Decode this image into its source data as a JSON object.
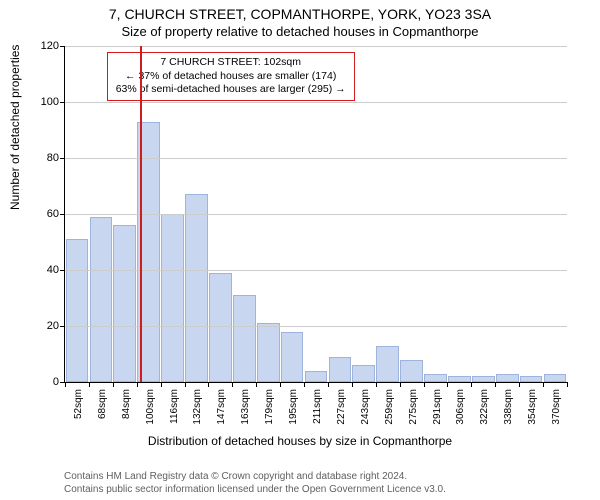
{
  "title": "7, CHURCH STREET, COPMANTHORPE, YORK, YO23 3SA",
  "subtitle": "Size of property relative to detached houses in Copmanthorpe",
  "ylabel": "Number of detached properties",
  "xlabel": "Distribution of detached houses by size in Copmanthorpe",
  "footer_line1": "Contains HM Land Registry data © Crown copyright and database right 2024.",
  "footer_line2": "Contains public sector information licensed under the Open Government Licence v3.0.",
  "chart": {
    "type": "histogram",
    "background_color": "#ffffff",
    "grid_color": "#cccccc",
    "axis_color": "#000000",
    "bar_fill": "#c9d6f0",
    "bar_stroke": "#9fb4dc",
    "marker_color": "#d01c1c",
    "annotation_border": "#d01c1c",
    "ylim": [
      0,
      120
    ],
    "ytick_step": 20,
    "x_categories": [
      "52sqm",
      "68sqm",
      "84sqm",
      "100sqm",
      "116sqm",
      "132sqm",
      "147sqm",
      "163sqm",
      "179sqm",
      "195sqm",
      "211sqm",
      "227sqm",
      "243sqm",
      "259sqm",
      "275sqm",
      "291sqm",
      "306sqm",
      "322sqm",
      "338sqm",
      "354sqm",
      "370sqm"
    ],
    "values": [
      51,
      59,
      56,
      93,
      60,
      67,
      39,
      31,
      21,
      18,
      4,
      9,
      6,
      13,
      8,
      3,
      2,
      2,
      3,
      2,
      3
    ],
    "highlight_bar_index": 3,
    "marker_index": 3,
    "bar_width_ratio": 0.95,
    "label_fontsize": 12,
    "tick_fontsize": 11,
    "xtick_fontsize": 10,
    "annotation_fontsize": 10.5
  },
  "annotation": {
    "line1": "7 CHURCH STREET: 102sqm",
    "line2": "← 37% of detached houses are smaller (174)",
    "line3": "63% of semi-detached houses are larger (295) →"
  }
}
